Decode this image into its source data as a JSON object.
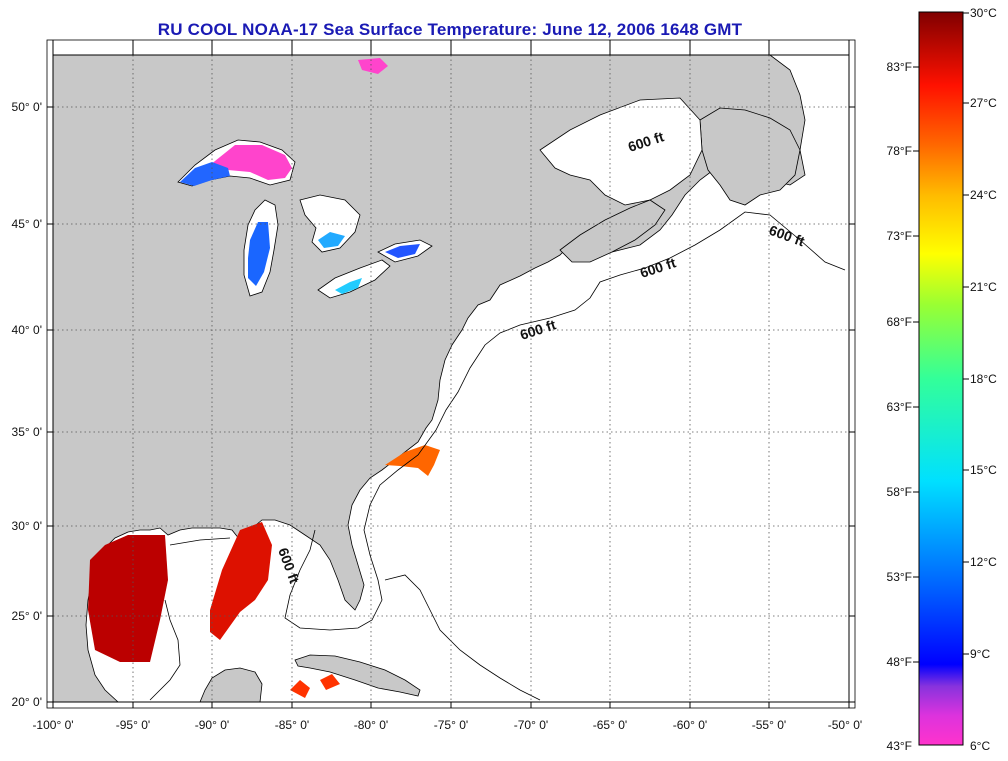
{
  "title": "RU COOL  NOAA-17  Sea Surface Temperature:  June 12, 2006 1648 GMT",
  "map": {
    "lon_labels": [
      "-100° 0'",
      "-95° 0'",
      "-90° 0'",
      "-85° 0'",
      "-80° 0'",
      "-75° 0'",
      "-70° 0'",
      "-65° 0'",
      "-60° 0'",
      "-55° 0'",
      "-50° 0'"
    ],
    "lat_labels": [
      "50° 0'",
      "45° 0'",
      "40° 0'",
      "35° 0'",
      "30° 0'",
      "25° 0'",
      "20° 0'"
    ],
    "lon_range": [
      -100,
      -50
    ],
    "lat_range": [
      20,
      52.5
    ],
    "grid": "dotted",
    "contour_label": "600 ft",
    "colors": {
      "land": "#c8c8c8",
      "ocean_no_data": "#ffffff",
      "coast": "#000000"
    }
  },
  "colorbar": {
    "celsius_labels": [
      "30°C",
      "27°C",
      "24°C",
      "21°C",
      "18°C",
      "15°C",
      "12°C",
      "9°C",
      "6°C"
    ],
    "fahrenheit_labels": [
      "83°F",
      "78°F",
      "73°F",
      "68°F",
      "63°F",
      "58°F",
      "53°F",
      "48°F",
      "43°F"
    ],
    "range_celsius": [
      6,
      30
    ],
    "gradient_stops": [
      "#ff33cc",
      "#8844dd",
      "#0000ff",
      "#0088ff",
      "#00ddff",
      "#33ff99",
      "#aaff33",
      "#ffff00",
      "#ffaa00",
      "#ff4400",
      "#ff0000",
      "#aa0000",
      "#800000"
    ]
  }
}
